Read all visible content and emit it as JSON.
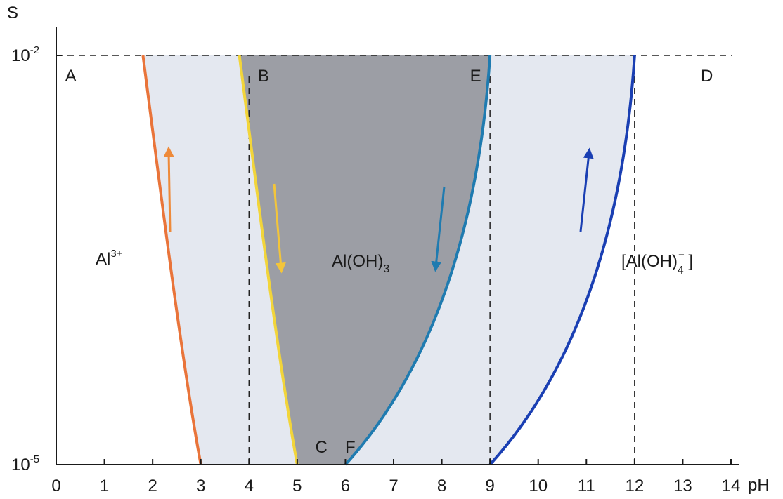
{
  "chart_data": {
    "type": "area",
    "title": "",
    "xlabel": "pH",
    "ylabel": "S",
    "xlim": [
      0,
      14
    ],
    "x_ticks": [
      "0",
      "1",
      "2",
      "3",
      "4",
      "5",
      "6",
      "7",
      "8",
      "9",
      "10",
      "11",
      "12",
      "13",
      "14"
    ],
    "y_ticks": [
      {
        "value": 0.01,
        "base": "10",
        "exponent": "-2"
      },
      {
        "value": 1e-05,
        "base": "10",
        "exponent": "-5"
      }
    ],
    "yscale": "log",
    "curves": [
      {
        "name": "",
        "color": "#e9743a",
        "x": [
          1.8,
          2.2,
          2.6,
          3.0
        ],
        "y": [
          0.01,
          0.0008,
          6e-05,
          1e-05
        ]
      },
      {
        "name": "",
        "color": "#f2d53a",
        "x": [
          3.8,
          4.2,
          4.6,
          5.0
        ],
        "y": [
          0.01,
          0.0008,
          6e-05,
          1e-05
        ]
      },
      {
        "name": "",
        "color": "#1f7bb0",
        "x": [
          6.0,
          8.0,
          8.8,
          9.0
        ],
        "y": [
          1e-05,
          6e-05,
          0.0008,
          0.01
        ]
      },
      {
        "name": "",
        "color": "#1a3fb3",
        "x": [
          9.0,
          11.0,
          11.8,
          12.0
        ],
        "y": [
          1e-05,
          6e-05,
          0.0008,
          0.01
        ]
      }
    ],
    "dashed_lines": {
      "x": [
        4,
        9,
        12
      ],
      "y": [
        0.01
      ]
    },
    "grid": false,
    "point_labels": [
      {
        "text": "A",
        "x": 0.3,
        "y": 0.01
      },
      {
        "text": "B",
        "x": 4.3,
        "y": 0.01
      },
      {
        "text": "E",
        "x": 8.7,
        "y": 0.01
      },
      {
        "text": "D",
        "x": 13.5,
        "y": 0.01
      },
      {
        "text": "C",
        "x": 5.5,
        "y": 1e-05
      },
      {
        "text": "F",
        "x": 6.1,
        "y": 1e-05
      }
    ],
    "species_labels": [
      {
        "base": "Al",
        "sup": "3+",
        "sub": "",
        "suffix": ""
      },
      {
        "base": "Al(OH)",
        "sup": "",
        "sub": "3",
        "suffix": ""
      },
      {
        "base": "[Al(OH)",
        "sup": "−",
        "sub": "4",
        "suffix": " ]"
      }
    ],
    "colors": {
      "light_fill": "#e4e8f0",
      "dark_fill": "#9c9ea5",
      "axis": "#1a1a1a"
    }
  }
}
